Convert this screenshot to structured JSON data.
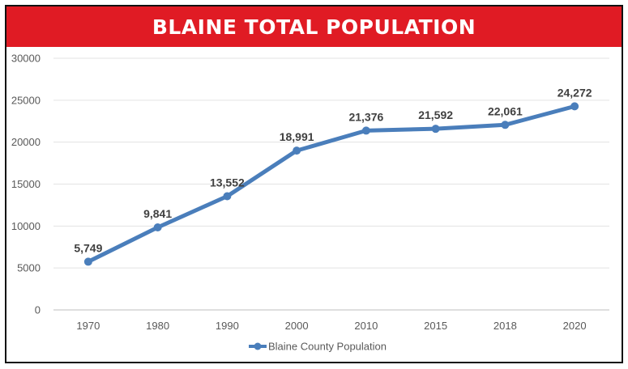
{
  "banner": {
    "title": "BLAINE TOTAL POPULATION",
    "color": "#E01B24"
  },
  "chart_data": {
    "type": "line",
    "title": "BLAINE TOTAL POPULATION",
    "x": [
      "1970",
      "1980",
      "1990",
      "2000",
      "2010",
      "2015",
      "2018",
      "2020"
    ],
    "series": [
      {
        "name": "Blaine County Population",
        "values": [
          5749,
          9841,
          13552,
          18991,
          21376,
          21592,
          22061,
          24272
        ],
        "data_labels": [
          "5,749",
          "9,841",
          "13,552",
          "18,991",
          "21,376",
          "21,592",
          "22,061",
          "24,272"
        ],
        "color": "#4A7EBB"
      }
    ],
    "y_ticks": [
      "0",
      "5000",
      "10000",
      "15000",
      "20000",
      "25000",
      "30000"
    ],
    "ylim": [
      0,
      30000
    ],
    "xlabel": "",
    "ylabel": "",
    "grid": true,
    "legend": "bottom-center",
    "marker": "circle"
  }
}
